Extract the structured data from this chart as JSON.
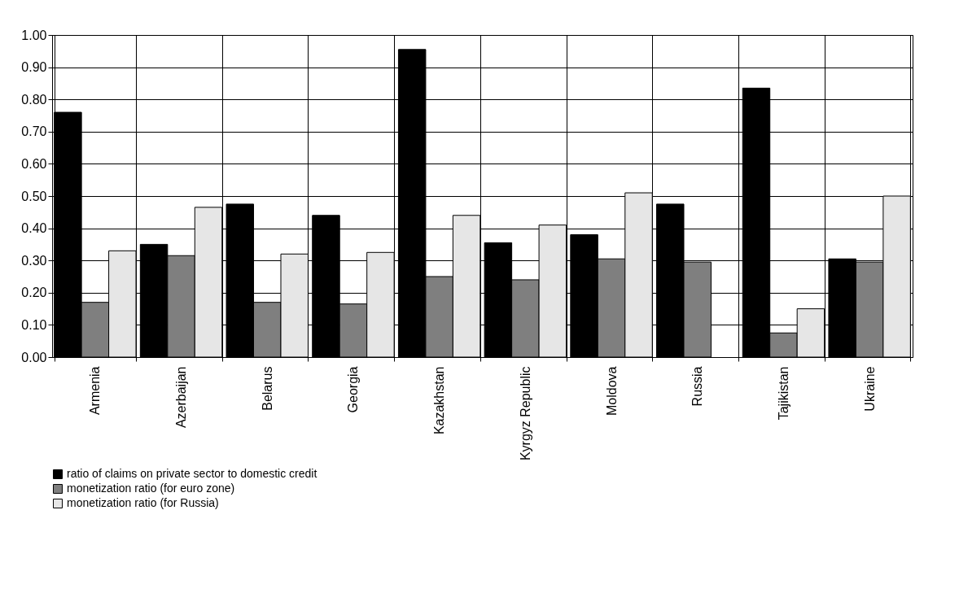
{
  "chart_data": {
    "type": "bar",
    "categories": [
      "Armenia",
      "Azerbaijan",
      "Belarus",
      "Georgia",
      "Kazakhstan",
      "Kyrgyz Republic",
      "Moldova",
      "Russia",
      "Tajikistan",
      "Ukraine"
    ],
    "series": [
      {
        "name": "ratio of claims on private sector to domestic credit",
        "color": "#000000",
        "values": [
          0.76,
          0.35,
          0.475,
          0.44,
          0.955,
          0.355,
          0.38,
          0.475,
          0.835,
          0.305
        ]
      },
      {
        "name": "monetization ratio (for euro zone)",
        "color": "#7f7f7f",
        "values": [
          0.17,
          0.315,
          0.17,
          0.165,
          0.25,
          0.24,
          0.305,
          0.295,
          0.075,
          0.295
        ]
      },
      {
        "name": "monetization ratio (for Russia)",
        "color": "#e6e6e6",
        "values": [
          0.33,
          0.465,
          0.32,
          0.325,
          0.44,
          0.41,
          0.51,
          null,
          0.15,
          0.5
        ]
      }
    ],
    "ylim": [
      0,
      1
    ],
    "yticks": [
      {
        "value": 0,
        "label": "0.00"
      },
      {
        "value": 0.1,
        "label": "0.10"
      },
      {
        "value": 0.2,
        "label": "0.20"
      },
      {
        "value": 0.3,
        "label": "0.30"
      },
      {
        "value": 0.4,
        "label": "0.40"
      },
      {
        "value": 0.5,
        "label": "0.50"
      },
      {
        "value": 0.6,
        "label": "0.60"
      },
      {
        "value": 0.7,
        "label": "0.70"
      },
      {
        "value": 0.8,
        "label": "0.80"
      },
      {
        "value": 0.9,
        "label": "0.90"
      },
      {
        "value": 1,
        "label": "1.00"
      }
    ],
    "grid": true,
    "legend": "bottom"
  }
}
